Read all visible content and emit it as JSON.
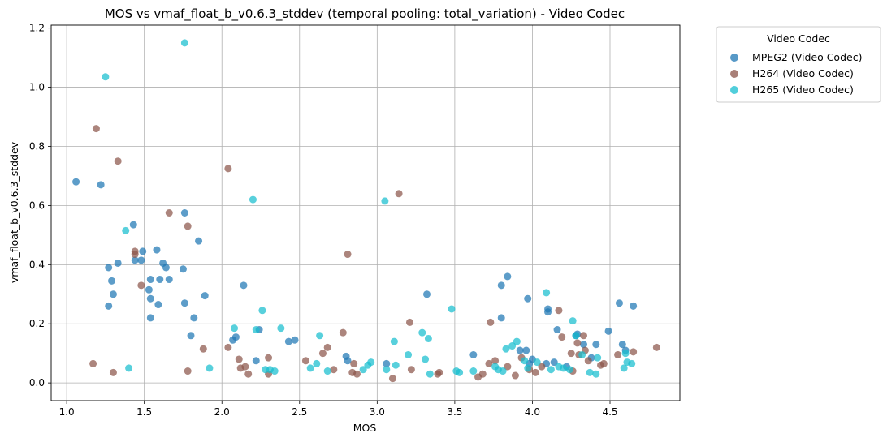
{
  "chart_data": {
    "type": "scatter",
    "title": "MOS vs vmaf_float_b_v0.6.3_stddev (temporal pooling: total_variation) - Video Codec",
    "xlabel": "MOS",
    "ylabel": "vmaf_float_b_v0.6.3_stddev",
    "xlim": [
      0.9,
      4.95
    ],
    "ylim": [
      -0.06,
      1.21
    ],
    "xticks": [
      1.0,
      1.5,
      2.0,
      2.5,
      3.0,
      3.5,
      4.0,
      4.5
    ],
    "xtick_labels": [
      "1.0",
      "1.5",
      "2.0",
      "2.5",
      "3.0",
      "3.5",
      "4.0",
      "4.5"
    ],
    "yticks": [
      0.0,
      0.2,
      0.4,
      0.6,
      0.8,
      1.0,
      1.2
    ],
    "ytick_labels": [
      "0.0",
      "0.2",
      "0.4",
      "0.6",
      "0.8",
      "1.0",
      "1.2"
    ],
    "grid": true,
    "legend": {
      "title": "Video Codec",
      "placement": "outside-right-top"
    },
    "series": [
      {
        "name": "MPEG2 (Video Codec)",
        "color": "#1f77b4",
        "points": [
          [
            1.06,
            0.68
          ],
          [
            1.22,
            0.67
          ],
          [
            1.27,
            0.39
          ],
          [
            1.27,
            0.26
          ],
          [
            1.29,
            0.345
          ],
          [
            1.3,
            0.3
          ],
          [
            1.33,
            0.405
          ],
          [
            1.43,
            0.535
          ],
          [
            1.44,
            0.415
          ],
          [
            1.48,
            0.415
          ],
          [
            1.49,
            0.445
          ],
          [
            1.53,
            0.315
          ],
          [
            1.54,
            0.35
          ],
          [
            1.54,
            0.285
          ],
          [
            1.54,
            0.22
          ],
          [
            1.58,
            0.45
          ],
          [
            1.59,
            0.265
          ],
          [
            1.6,
            0.35
          ],
          [
            1.62,
            0.405
          ],
          [
            1.64,
            0.39
          ],
          [
            1.66,
            0.35
          ],
          [
            1.75,
            0.385
          ],
          [
            1.76,
            0.575
          ],
          [
            1.76,
            0.27
          ],
          [
            1.8,
            0.16
          ],
          [
            1.82,
            0.22
          ],
          [
            1.85,
            0.48
          ],
          [
            1.89,
            0.295
          ],
          [
            2.07,
            0.145
          ],
          [
            2.09,
            0.155
          ],
          [
            2.14,
            0.33
          ],
          [
            2.22,
            0.075
          ],
          [
            2.24,
            0.18
          ],
          [
            2.43,
            0.14
          ],
          [
            2.47,
            0.145
          ],
          [
            2.8,
            0.09
          ],
          [
            2.81,
            0.075
          ],
          [
            3.06,
            0.065
          ],
          [
            3.32,
            0.3
          ],
          [
            3.62,
            0.095
          ],
          [
            3.8,
            0.33
          ],
          [
            3.8,
            0.22
          ],
          [
            3.84,
            0.36
          ],
          [
            3.92,
            0.11
          ],
          [
            3.96,
            0.11
          ],
          [
            3.97,
            0.285
          ],
          [
            3.98,
            0.065
          ],
          [
            4.0,
            0.08
          ],
          [
            4.09,
            0.065
          ],
          [
            4.1,
            0.25
          ],
          [
            4.1,
            0.24
          ],
          [
            4.14,
            0.07
          ],
          [
            4.16,
            0.18
          ],
          [
            4.22,
            0.055
          ],
          [
            4.28,
            0.16
          ],
          [
            4.29,
            0.165
          ],
          [
            4.33,
            0.13
          ],
          [
            4.38,
            0.085
          ],
          [
            4.41,
            0.13
          ],
          [
            4.49,
            0.175
          ],
          [
            4.56,
            0.27
          ],
          [
            4.58,
            0.13
          ],
          [
            4.6,
            0.11
          ],
          [
            4.65,
            0.26
          ]
        ]
      },
      {
        "name": "H264 (Video Codec)",
        "color": "#8c564b",
        "points": [
          [
            1.17,
            0.065
          ],
          [
            1.19,
            0.86
          ],
          [
            1.3,
            0.035
          ],
          [
            1.33,
            0.75
          ],
          [
            1.44,
            0.445
          ],
          [
            1.44,
            0.435
          ],
          [
            1.48,
            0.33
          ],
          [
            1.66,
            0.575
          ],
          [
            1.78,
            0.53
          ],
          [
            1.78,
            0.04
          ],
          [
            1.88,
            0.115
          ],
          [
            2.04,
            0.12
          ],
          [
            2.04,
            0.725
          ],
          [
            2.11,
            0.08
          ],
          [
            2.12,
            0.05
          ],
          [
            2.15,
            0.055
          ],
          [
            2.17,
            0.03
          ],
          [
            2.3,
            0.085
          ],
          [
            2.3,
            0.03
          ],
          [
            2.54,
            0.075
          ],
          [
            2.65,
            0.1
          ],
          [
            2.68,
            0.12
          ],
          [
            2.72,
            0.045
          ],
          [
            2.78,
            0.17
          ],
          [
            2.81,
            0.435
          ],
          [
            2.84,
            0.035
          ],
          [
            2.85,
            0.065
          ],
          [
            2.87,
            0.03
          ],
          [
            3.1,
            0.015
          ],
          [
            3.14,
            0.64
          ],
          [
            3.21,
            0.205
          ],
          [
            3.22,
            0.045
          ],
          [
            3.39,
            0.03
          ],
          [
            3.4,
            0.035
          ],
          [
            3.65,
            0.02
          ],
          [
            3.68,
            0.03
          ],
          [
            3.72,
            0.065
          ],
          [
            3.73,
            0.205
          ],
          [
            3.76,
            0.075
          ],
          [
            3.84,
            0.055
          ],
          [
            3.89,
            0.025
          ],
          [
            3.93,
            0.085
          ],
          [
            3.98,
            0.045
          ],
          [
            4.02,
            0.035
          ],
          [
            4.06,
            0.055
          ],
          [
            4.17,
            0.245
          ],
          [
            4.19,
            0.155
          ],
          [
            4.25,
            0.1
          ],
          [
            4.26,
            0.04
          ],
          [
            4.29,
            0.135
          ],
          [
            4.3,
            0.095
          ],
          [
            4.33,
            0.16
          ],
          [
            4.34,
            0.11
          ],
          [
            4.36,
            0.075
          ],
          [
            4.44,
            0.06
          ],
          [
            4.46,
            0.065
          ],
          [
            4.55,
            0.095
          ],
          [
            4.65,
            0.105
          ],
          [
            4.8,
            0.12
          ]
        ]
      },
      {
        "name": "H265 (Video Codec)",
        "color": "#17becf",
        "points": [
          [
            1.25,
            1.035
          ],
          [
            1.38,
            0.515
          ],
          [
            1.4,
            0.05
          ],
          [
            1.76,
            1.15
          ],
          [
            1.92,
            0.05
          ],
          [
            2.08,
            0.185
          ],
          [
            2.2,
            0.62
          ],
          [
            2.22,
            0.18
          ],
          [
            2.26,
            0.245
          ],
          [
            2.28,
            0.045
          ],
          [
            2.31,
            0.045
          ],
          [
            2.34,
            0.04
          ],
          [
            2.38,
            0.185
          ],
          [
            2.57,
            0.05
          ],
          [
            2.61,
            0.065
          ],
          [
            2.63,
            0.16
          ],
          [
            2.68,
            0.04
          ],
          [
            2.91,
            0.045
          ],
          [
            2.94,
            0.06
          ],
          [
            2.96,
            0.07
          ],
          [
            3.05,
            0.615
          ],
          [
            3.06,
            0.045
          ],
          [
            3.11,
            0.14
          ],
          [
            3.12,
            0.06
          ],
          [
            3.2,
            0.095
          ],
          [
            3.29,
            0.17
          ],
          [
            3.31,
            0.08
          ],
          [
            3.33,
            0.15
          ],
          [
            3.34,
            0.03
          ],
          [
            3.48,
            0.25
          ],
          [
            3.51,
            0.04
          ],
          [
            3.53,
            0.035
          ],
          [
            3.62,
            0.04
          ],
          [
            3.76,
            0.055
          ],
          [
            3.78,
            0.045
          ],
          [
            3.81,
            0.04
          ],
          [
            3.83,
            0.115
          ],
          [
            3.87,
            0.125
          ],
          [
            3.9,
            0.14
          ],
          [
            3.95,
            0.075
          ],
          [
            3.97,
            0.05
          ],
          [
            4.03,
            0.07
          ],
          [
            4.09,
            0.305
          ],
          [
            4.12,
            0.045
          ],
          [
            4.17,
            0.055
          ],
          [
            4.2,
            0.05
          ],
          [
            4.24,
            0.045
          ],
          [
            4.26,
            0.21
          ],
          [
            4.28,
            0.16
          ],
          [
            4.32,
            0.095
          ],
          [
            4.37,
            0.035
          ],
          [
            4.41,
            0.03
          ],
          [
            4.42,
            0.085
          ],
          [
            4.59,
            0.05
          ],
          [
            4.6,
            0.1
          ],
          [
            4.61,
            0.07
          ],
          [
            4.64,
            0.065
          ]
        ]
      }
    ]
  }
}
